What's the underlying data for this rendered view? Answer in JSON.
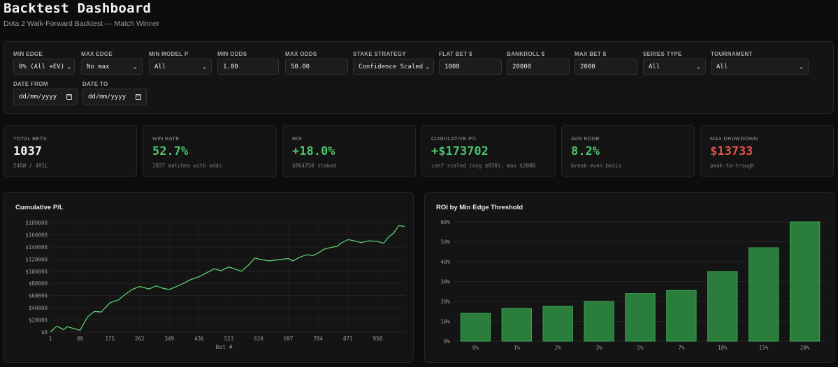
{
  "header": {
    "title": "Backtest Dashboard",
    "subtitle": "Dota 2 Walk-Forward Backtest — Match Winner"
  },
  "filters": {
    "min_edge": {
      "label": "MIN EDGE",
      "value": "0% (All +EV)"
    },
    "max_edge": {
      "label": "MAX EDGE",
      "value": "No max"
    },
    "min_model_p": {
      "label": "MIN MODEL P",
      "value": "All"
    },
    "min_odds": {
      "label": "MIN ODDS",
      "value": "1.00"
    },
    "max_odds": {
      "label": "MAX ODDS",
      "value": "50.00"
    },
    "stake_strategy": {
      "label": "STAKE STRATEGY",
      "value": "Confidence Scaled"
    },
    "flat_bet": {
      "label": "FLAT BET $",
      "value": "1000"
    },
    "bankroll": {
      "label": "BANKROLL $",
      "value": "20000"
    },
    "max_bet": {
      "label": "MAX BET $",
      "value": "2000"
    },
    "series_type": {
      "label": "SERIES TYPE",
      "value": "All"
    },
    "tournament": {
      "label": "TOURNAMENT",
      "value": "All"
    },
    "date_from": {
      "label": "DATE FROM",
      "value": "dd/mm/yyyy"
    },
    "date_to": {
      "label": "DATE TO",
      "value": "dd/mm/yyyy"
    }
  },
  "kpis": {
    "total_bets": {
      "label": "TOTAL BETS",
      "value": "1037",
      "sub": "546W / 491L"
    },
    "win_rate": {
      "label": "WIN RATE",
      "value": "52.7%",
      "sub": "1037 matches with odds"
    },
    "roi": {
      "label": "ROI",
      "value": "+18.0%",
      "sub": "$964750 staked"
    },
    "cum_pl": {
      "label": "CUMULATIVE P/L",
      "value": "+$173702",
      "sub": "conf scaled (avg $930), max $2000"
    },
    "avg_edge": {
      "label": "AVG EDGE",
      "value": "8.2%",
      "sub": "break-even basis"
    },
    "max_drawdown": {
      "label": "MAX DRAWDOWN",
      "value": "$13733",
      "sub": "peak-to-trough"
    }
  },
  "colors": {
    "positive": "#4cc46a",
    "negative": "#e5534b",
    "bar_fill": "#2a7d3b",
    "bar_stroke": "#3aa354",
    "line": "#5ccf6e"
  },
  "chart_data": [
    {
      "type": "line",
      "title": "Cumulative P/L",
      "xlabel": "Bet #",
      "ylabel": "",
      "x_ticks": [
        "1",
        "88",
        "175",
        "262",
        "349",
        "436",
        "523",
        "610",
        "697",
        "784",
        "871",
        "958"
      ],
      "y_ticks": [
        "$0",
        "$20000",
        "$40000",
        "$60000",
        "$80000",
        "$100000",
        "$120000",
        "$140000",
        "$160000",
        "$180000"
      ],
      "xlim": [
        1,
        1037
      ],
      "ylim": [
        0,
        180000
      ],
      "x": [
        1,
        20,
        40,
        50,
        88,
        110,
        130,
        150,
        175,
        200,
        220,
        240,
        262,
        290,
        310,
        330,
        349,
        370,
        390,
        410,
        436,
        460,
        480,
        500,
        523,
        545,
        560,
        580,
        600,
        610,
        640,
        670,
        697,
        710,
        730,
        750,
        770,
        784,
        800,
        820,
        840,
        850,
        871,
        890,
        910,
        930,
        958,
        975,
        990,
        1005,
        1020,
        1037
      ],
      "values": [
        0,
        10000,
        4000,
        9000,
        3000,
        25000,
        34000,
        33000,
        48000,
        53000,
        62000,
        70000,
        75000,
        71000,
        76000,
        72000,
        70000,
        75000,
        80000,
        86000,
        91000,
        98000,
        104000,
        101000,
        107000,
        103000,
        100000,
        110000,
        122000,
        120000,
        117000,
        119000,
        121000,
        117000,
        123000,
        127000,
        126000,
        130000,
        136000,
        139000,
        141000,
        146000,
        152000,
        150000,
        147000,
        150000,
        149000,
        146000,
        156000,
        163000,
        175000,
        173702
      ],
      "grid": true
    },
    {
      "type": "bar",
      "title": "ROI by Min Edge Threshold",
      "categories": [
        "0%",
        "1%",
        "2%",
        "3%",
        "5%",
        "7%",
        "10%",
        "15%",
        "20%"
      ],
      "values": [
        14,
        16.5,
        17.5,
        20,
        24,
        25.5,
        35,
        47,
        60
      ],
      "y_ticks": [
        "0%",
        "10%",
        "20%",
        "30%",
        "40%",
        "50%",
        "60%"
      ],
      "ylim": [
        0,
        60
      ],
      "xlabel": "",
      "ylabel": "",
      "grid": true
    }
  ]
}
